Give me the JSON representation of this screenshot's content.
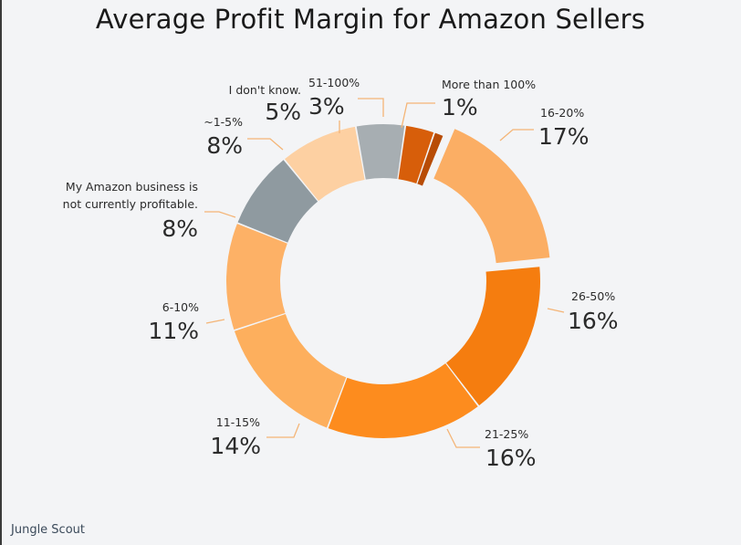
{
  "title": "Average Profit Margin for Amazon Sellers",
  "brand": "Jungle Scout",
  "colors": {
    "leader": "#f4b577",
    "label": "#2b2b2b"
  },
  "chart_data": {
    "type": "pie",
    "variant": "donut",
    "title": "Average Profit Margin for Amazon Sellers",
    "slices": [
      {
        "label": "More than 100%",
        "value_label": "1%",
        "value": 1,
        "color": "#b84c05",
        "exploded": false
      },
      {
        "label": "16-20%",
        "value_label": "17%",
        "value": 17,
        "color": "#fbae64",
        "exploded": true
      },
      {
        "label": "26-50%",
        "value_label": "16%",
        "value": 16,
        "color": "#f57d0f",
        "exploded": false
      },
      {
        "label": "21-25%",
        "value_label": "16%",
        "value": 16,
        "color": "#fd8c1e",
        "exploded": false
      },
      {
        "label": "11-15%",
        "value_label": "14%",
        "value": 14,
        "color": "#fdaf5d",
        "exploded": false
      },
      {
        "label": "6-10%",
        "value_label": "11%",
        "value": 11,
        "color": "#fdb166",
        "exploded": false
      },
      {
        "label": "My Amazon business is not currently profitable.",
        "value_label": "8%",
        "value": 8,
        "color": "#8f9aa0",
        "exploded": false
      },
      {
        "label": "~1-5%",
        "value_label": "8%",
        "value": 8,
        "color": "#fdd0a2",
        "exploded": false
      },
      {
        "label": "I don't know.",
        "value_label": "5%",
        "value": 5,
        "color": "#a7aeb2",
        "exploded": false
      },
      {
        "label": "51-100%",
        "value_label": "3%",
        "value": 3,
        "color": "#d75e0a",
        "exploded": false
      }
    ]
  }
}
